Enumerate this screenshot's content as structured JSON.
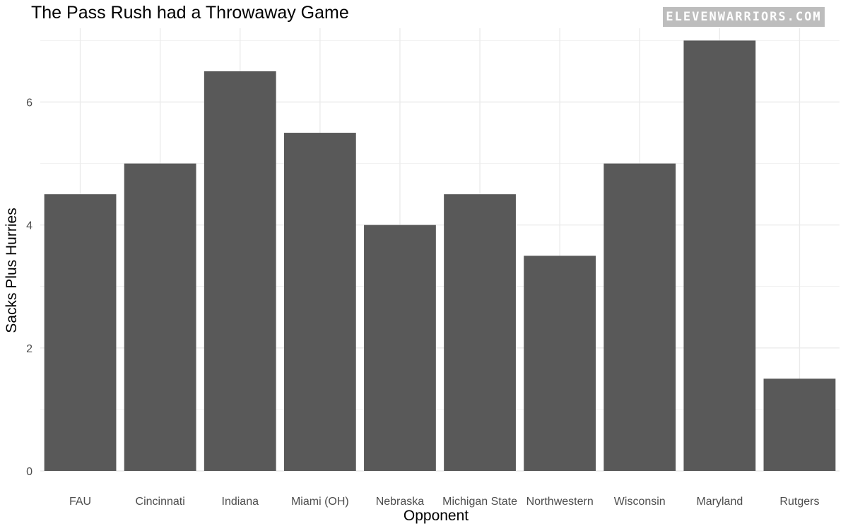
{
  "header": {
    "title": "The Pass Rush had a Throwaway Game",
    "brand": "ELEVENWARRIORS.COM"
  },
  "colors": {
    "bar": "#595959",
    "grid": "#ebebeb",
    "tick_text": "#4d4d4d",
    "badge_bg": "#bdbdbd"
  },
  "chart_data": {
    "type": "bar",
    "title": "The Pass Rush had a Throwaway Game",
    "xlabel": "Opponent",
    "ylabel": "Sacks Plus Hurries",
    "categories": [
      "FAU",
      "Cincinnati",
      "Indiana",
      "Miami (OH)",
      "Nebraska",
      "Michigan State",
      "Northwestern",
      "Wisconsin",
      "Maryland",
      "Rutgers"
    ],
    "values": [
      4.5,
      5,
      6.5,
      5.5,
      4,
      4.5,
      3.5,
      5,
      7,
      1.5
    ],
    "ylim": [
      0,
      7.2
    ],
    "y_ticks": [
      0,
      2,
      4,
      6
    ],
    "grid": true,
    "legend": "none"
  }
}
